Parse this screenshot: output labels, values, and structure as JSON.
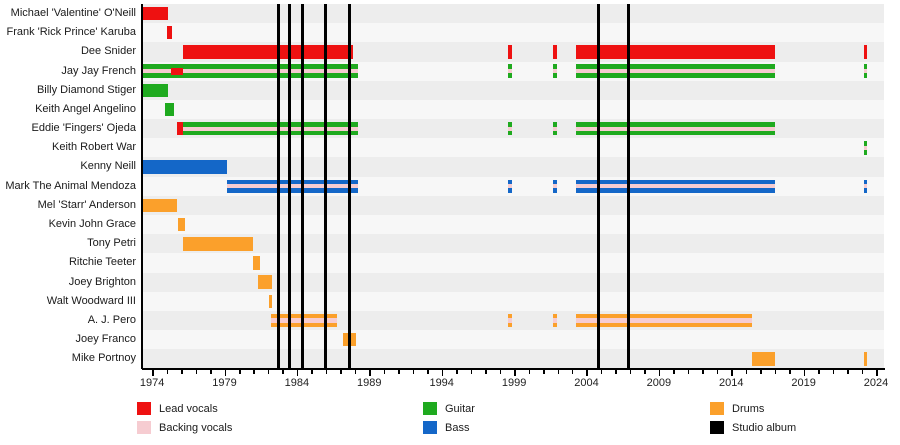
{
  "legend": {
    "items": [
      {
        "label": "Lead vocals",
        "color": "#ee1111"
      },
      {
        "label": "Backing vocals",
        "color": "#f6ccd1"
      },
      {
        "label": "Guitar",
        "color": "#1faa1f"
      },
      {
        "label": "Bass",
        "color": "#1467c8"
      },
      {
        "label": "Drums",
        "color": "#fba02b"
      },
      {
        "label": "Studio album",
        "color": "#000000"
      }
    ]
  },
  "chart_data": {
    "type": "timeline",
    "title": "Band members timeline (Gantt-style, Wikipedia EasyTimeline)",
    "x_domain": [
      1973.3,
      2024.55
    ],
    "x_major_ticks": [
      1974,
      1979,
      1984,
      1989,
      1994,
      1999,
      2004,
      2009,
      2014,
      2019,
      2024
    ],
    "x_minor_tick_every_years": 1,
    "grid": "off",
    "legend_position": "bottom",
    "album_release_lines_years": [
      1982.7,
      1983.5,
      1984.4,
      1985.95,
      1987.6,
      2004.85,
      2006.9
    ],
    "roles": {
      "lead": {
        "label": "Lead vocals",
        "color": "#ee1111"
      },
      "backing": {
        "label": "Backing vocals",
        "color": "#f6ccd1"
      },
      "guitar": {
        "label": "Guitar",
        "color": "#1faa1f"
      },
      "bass": {
        "label": "Bass",
        "color": "#1467c8"
      },
      "drums": {
        "label": "Drums",
        "color": "#fba02b"
      }
    },
    "row_stripe_colors": [
      "#ededed",
      "#f7f7f7"
    ],
    "members": [
      {
        "name": "Michael 'Valentine' O'Neill",
        "segments": [
          {
            "start": 1973.3,
            "end": 1975.1,
            "role": "lead"
          }
        ]
      },
      {
        "name": "Frank 'Rick Prince' Karuba",
        "segments": [
          {
            "start": 1975.0,
            "end": 1975.35,
            "role": "lead"
          }
        ]
      },
      {
        "name": "Dee Snider",
        "segments": [
          {
            "start": 1976.1,
            "end": 1987.9,
            "role": "lead"
          },
          {
            "start": 1998.6,
            "end": 1998.85,
            "role": "lead"
          },
          {
            "start": 2001.7,
            "end": 2001.95,
            "role": "lead"
          },
          {
            "start": 2003.3,
            "end": 2017.0,
            "role": "lead"
          },
          {
            "start": 2023.15,
            "end": 2023.4,
            "role": "lead"
          }
        ]
      },
      {
        "name": "Jay Jay French",
        "segments": [
          {
            "start": 1973.3,
            "end": 1988.2,
            "role": "guitar",
            "stripe": "backing"
          },
          {
            "start": 1998.6,
            "end": 1998.85,
            "role": "guitar",
            "stripe": "backing"
          },
          {
            "start": 2001.7,
            "end": 2001.95,
            "role": "guitar",
            "stripe": "backing"
          },
          {
            "start": 2003.3,
            "end": 2017.0,
            "role": "guitar",
            "stripe": "backing"
          },
          {
            "start": 2023.15,
            "end": 2023.4,
            "role": "guitar",
            "stripe": "backing"
          }
        ],
        "overlays": [
          {
            "start": 1975.3,
            "end": 1976.1,
            "role": "lead"
          }
        ]
      },
      {
        "name": "Billy Diamond Stiger",
        "segments": [
          {
            "start": 1973.3,
            "end": 1975.1,
            "role": "guitar"
          }
        ]
      },
      {
        "name": "Keith Angel Angelino",
        "segments": [
          {
            "start": 1974.9,
            "end": 1975.5,
            "role": "guitar"
          }
        ]
      },
      {
        "name": "Eddie 'Fingers' Ojeda",
        "segments": [
          {
            "start": 1975.75,
            "end": 1976.1,
            "role": "lead"
          },
          {
            "start": 1976.1,
            "end": 1988.2,
            "role": "guitar",
            "stripe": "backing"
          },
          {
            "start": 1998.6,
            "end": 1998.85,
            "role": "guitar",
            "stripe": "backing"
          },
          {
            "start": 2001.7,
            "end": 2001.95,
            "role": "guitar",
            "stripe": "backing"
          },
          {
            "start": 2003.3,
            "end": 2017.0,
            "role": "guitar",
            "stripe": "backing"
          }
        ]
      },
      {
        "name": "Keith Robert War",
        "segments": [
          {
            "start": 2023.15,
            "end": 2023.4,
            "role": "guitar",
            "stripe": "backing"
          }
        ]
      },
      {
        "name": "Kenny Neill",
        "segments": [
          {
            "start": 1973.3,
            "end": 1979.2,
            "role": "bass"
          }
        ]
      },
      {
        "name": "Mark The Animal Mendoza",
        "segments": [
          {
            "start": 1979.2,
            "end": 1988.2,
            "role": "bass",
            "stripe": "backing"
          },
          {
            "start": 1998.6,
            "end": 1998.85,
            "role": "bass",
            "stripe": "backing"
          },
          {
            "start": 2001.7,
            "end": 2001.95,
            "role": "bass",
            "stripe": "backing"
          },
          {
            "start": 2003.3,
            "end": 2017.0,
            "role": "bass",
            "stripe": "backing"
          },
          {
            "start": 2023.15,
            "end": 2023.4,
            "role": "bass",
            "stripe": "backing"
          }
        ]
      },
      {
        "name": "Mel 'Starr' Anderson",
        "segments": [
          {
            "start": 1973.3,
            "end": 1975.7,
            "role": "drums"
          }
        ]
      },
      {
        "name": "Kevin John Grace",
        "segments": [
          {
            "start": 1975.8,
            "end": 1976.3,
            "role": "drums"
          }
        ]
      },
      {
        "name": "Tony Petri",
        "segments": [
          {
            "start": 1976.1,
            "end": 1981.0,
            "role": "drums"
          }
        ]
      },
      {
        "name": "Ritchie Teeter",
        "segments": [
          {
            "start": 1981.0,
            "end": 1981.45,
            "role": "drums"
          }
        ]
      },
      {
        "name": "Joey Brighton",
        "segments": [
          {
            "start": 1981.3,
            "end": 1982.3,
            "role": "drums"
          }
        ]
      },
      {
        "name": "Walt Woodward III",
        "segments": [
          {
            "start": 1982.1,
            "end": 1982.3,
            "role": "drums"
          }
        ]
      },
      {
        "name": "A. J. Pero",
        "segments": [
          {
            "start": 1982.2,
            "end": 1986.8,
            "role": "drums",
            "stripe": "backing"
          },
          {
            "start": 1998.6,
            "end": 1998.85,
            "role": "drums",
            "stripe": "backing"
          },
          {
            "start": 2001.7,
            "end": 2001.95,
            "role": "drums",
            "stripe": "backing"
          },
          {
            "start": 2003.3,
            "end": 2015.4,
            "role": "drums",
            "stripe": "backing"
          }
        ]
      },
      {
        "name": "Joey Franco",
        "segments": [
          {
            "start": 1987.2,
            "end": 1988.1,
            "role": "drums"
          }
        ]
      },
      {
        "name": "Mike Portnoy",
        "segments": [
          {
            "start": 2015.4,
            "end": 2017.0,
            "role": "drums"
          },
          {
            "start": 2023.15,
            "end": 2023.4,
            "role": "drums"
          }
        ]
      }
    ]
  }
}
